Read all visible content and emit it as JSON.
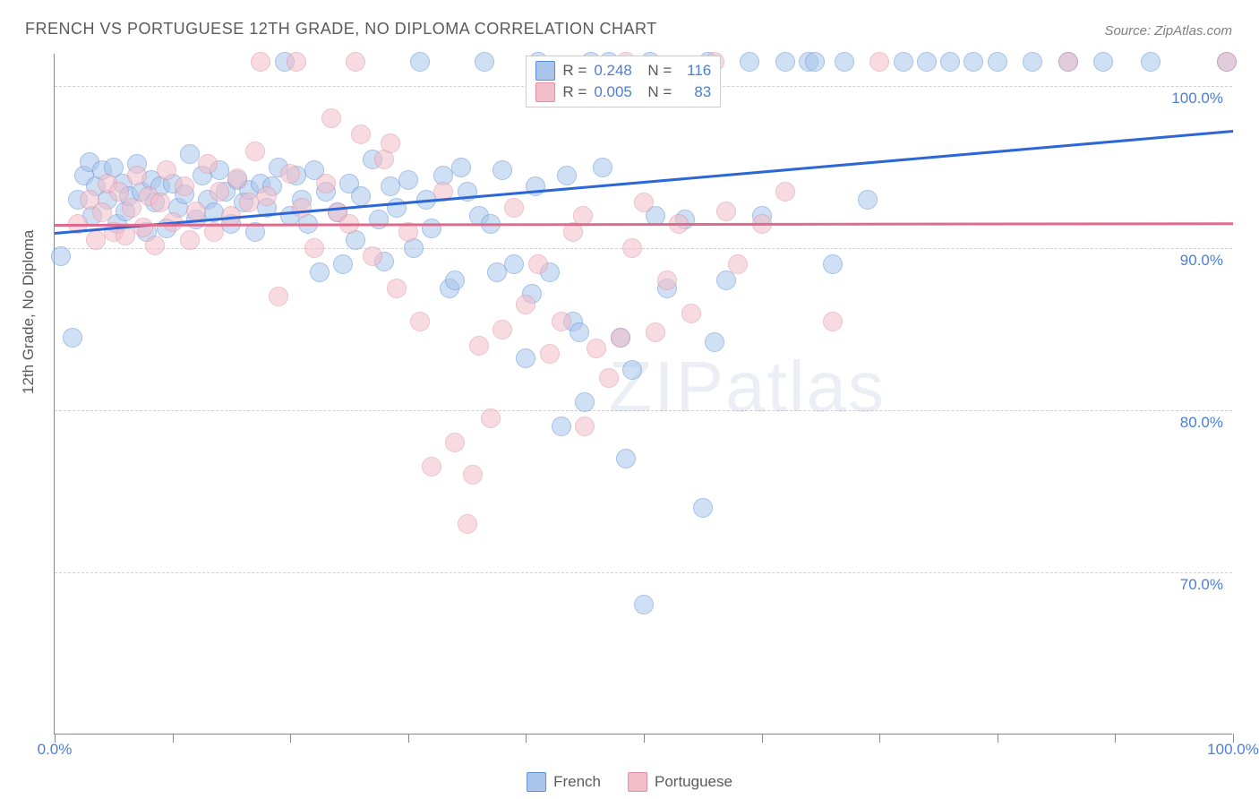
{
  "title": "FRENCH VS PORTUGUESE 12TH GRADE, NO DIPLOMA CORRELATION CHART",
  "source": "Source: ZipAtlas.com",
  "y_axis_label": "12th Grade, No Diploma",
  "watermark": "ZIPatlas",
  "chart": {
    "type": "scatter",
    "background_color": "#ffffff",
    "grid_color": "#d0d0d0",
    "axis_color": "#888888",
    "xlim": [
      0,
      100
    ],
    "ylim": [
      60,
      102
    ],
    "yticks": [
      70,
      80,
      90,
      100
    ],
    "ytick_labels": [
      "70.0%",
      "80.0%",
      "90.0%",
      "100.0%"
    ],
    "xticks": [
      0,
      10,
      20,
      30,
      40,
      50,
      60,
      70,
      80,
      90,
      100
    ],
    "xtick_labels": {
      "0": "0.0%",
      "100": "100.0%"
    },
    "marker_radius": 11,
    "marker_opacity": 0.55,
    "series": [
      {
        "name": "French",
        "fill": "#a9c5ec",
        "stroke": "#5e8fd4",
        "R": "0.248",
        "N": "116",
        "trend": {
          "x1": 0,
          "y1": 91.0,
          "x2": 100,
          "y2": 97.3,
          "color": "#2d66d6",
          "width": 2.5
        },
        "points": [
          [
            0.5,
            89.5
          ],
          [
            1.5,
            84.5
          ],
          [
            2,
            93
          ],
          [
            2.5,
            94.5
          ],
          [
            3,
            95.3
          ],
          [
            3.2,
            92
          ],
          [
            3.5,
            93.8
          ],
          [
            4,
            94.8
          ],
          [
            4.5,
            93
          ],
          [
            5,
            95
          ],
          [
            5.3,
            91.5
          ],
          [
            5.8,
            94
          ],
          [
            6,
            92.3
          ],
          [
            6.3,
            93.2
          ],
          [
            7,
            95.2
          ],
          [
            7.4,
            93.5
          ],
          [
            7.8,
            91
          ],
          [
            8.2,
            94.2
          ],
          [
            8.5,
            92.8
          ],
          [
            9,
            93.8
          ],
          [
            9.5,
            91.2
          ],
          [
            10,
            94
          ],
          [
            10.5,
            92.5
          ],
          [
            11,
            93.3
          ],
          [
            11.5,
            95.8
          ],
          [
            12,
            91.8
          ],
          [
            12.5,
            94.5
          ],
          [
            13,
            93
          ],
          [
            13.5,
            92.2
          ],
          [
            14,
            94.8
          ],
          [
            14.5,
            93.5
          ],
          [
            15,
            91.5
          ],
          [
            15.5,
            94.2
          ],
          [
            16,
            92.8
          ],
          [
            16.5,
            93.6
          ],
          [
            17,
            91
          ],
          [
            17.5,
            94
          ],
          [
            18,
            92.5
          ],
          [
            18.5,
            93.8
          ],
          [
            19,
            95
          ],
          [
            19.5,
            101.5
          ],
          [
            20,
            92
          ],
          [
            20.5,
            94.5
          ],
          [
            21,
            93
          ],
          [
            21.5,
            91.5
          ],
          [
            22,
            94.8
          ],
          [
            22.5,
            88.5
          ],
          [
            23,
            93.5
          ],
          [
            24,
            92.2
          ],
          [
            24.5,
            89
          ],
          [
            25,
            94
          ],
          [
            25.5,
            90.5
          ],
          [
            26,
            93.2
          ],
          [
            27,
            95.5
          ],
          [
            27.5,
            91.8
          ],
          [
            28,
            89.2
          ],
          [
            28.5,
            93.8
          ],
          [
            29,
            92.5
          ],
          [
            30,
            94.2
          ],
          [
            30.5,
            90
          ],
          [
            31,
            101.5
          ],
          [
            31.5,
            93
          ],
          [
            32,
            91.2
          ],
          [
            33,
            94.5
          ],
          [
            33.5,
            87.5
          ],
          [
            34,
            88
          ],
          [
            34.5,
            95
          ],
          [
            35,
            93.5
          ],
          [
            36,
            92
          ],
          [
            36.5,
            101.5
          ],
          [
            37,
            91.5
          ],
          [
            37.5,
            88.5
          ],
          [
            38,
            94.8
          ],
          [
            39,
            89
          ],
          [
            40,
            83.2
          ],
          [
            40.5,
            87.2
          ],
          [
            40.8,
            93.8
          ],
          [
            41,
            101.5
          ],
          [
            42,
            88.5
          ],
          [
            43,
            79
          ],
          [
            43.5,
            94.5
          ],
          [
            44,
            85.5
          ],
          [
            44.5,
            84.8
          ],
          [
            45,
            80.5
          ],
          [
            45.5,
            101.5
          ],
          [
            46.5,
            95
          ],
          [
            47,
            101.5
          ],
          [
            48,
            84.5
          ],
          [
            48.5,
            77
          ],
          [
            49,
            82.5
          ],
          [
            50,
            68
          ],
          [
            50.5,
            101.5
          ],
          [
            51,
            92
          ],
          [
            52,
            87.5
          ],
          [
            53.5,
            91.8
          ],
          [
            55,
            74
          ],
          [
            55.5,
            101.5
          ],
          [
            56,
            84.2
          ],
          [
            57,
            88
          ],
          [
            59,
            101.5
          ],
          [
            60,
            92
          ],
          [
            62,
            101.5
          ],
          [
            64,
            101.5
          ],
          [
            64.5,
            101.5
          ],
          [
            66,
            89
          ],
          [
            67,
            101.5
          ],
          [
            69,
            93
          ],
          [
            72,
            101.5
          ],
          [
            74,
            101.5
          ],
          [
            76,
            101.5
          ],
          [
            78,
            101.5
          ],
          [
            80,
            101.5
          ],
          [
            83,
            101.5
          ],
          [
            86,
            101.5
          ],
          [
            89,
            101.5
          ],
          [
            93,
            101.5
          ],
          [
            99.5,
            101.5
          ]
        ]
      },
      {
        "name": "Portuguese",
        "fill": "#f3bec9",
        "stroke": "#de8fa5",
        "R": "0.005",
        "N": "83",
        "trend": {
          "x1": 0,
          "y1": 91.5,
          "x2": 100,
          "y2": 91.6,
          "color": "#e06a8c",
          "width": 2.5
        },
        "points": [
          [
            2,
            91.5
          ],
          [
            3,
            93
          ],
          [
            3.5,
            90.5
          ],
          [
            4,
            92.2
          ],
          [
            4.5,
            94
          ],
          [
            5,
            91
          ],
          [
            5.5,
            93.5
          ],
          [
            6,
            90.8
          ],
          [
            6.5,
            92.5
          ],
          [
            7,
            94.5
          ],
          [
            7.5,
            91.3
          ],
          [
            8,
            93.2
          ],
          [
            8.5,
            90.2
          ],
          [
            9,
            92.8
          ],
          [
            9.5,
            94.8
          ],
          [
            10,
            91.6
          ],
          [
            11,
            93.8
          ],
          [
            11.5,
            90.5
          ],
          [
            12,
            92.3
          ],
          [
            13,
            95.2
          ],
          [
            13.5,
            91
          ],
          [
            14,
            93.5
          ],
          [
            15,
            92
          ],
          [
            15.5,
            94.3
          ],
          [
            16.5,
            92.8
          ],
          [
            17,
            96
          ],
          [
            17.5,
            101.5
          ],
          [
            18,
            93.2
          ],
          [
            19,
            87
          ],
          [
            20,
            94.6
          ],
          [
            20.5,
            101.5
          ],
          [
            21,
            92.5
          ],
          [
            22,
            90
          ],
          [
            23,
            94
          ],
          [
            23.5,
            98
          ],
          [
            24,
            92.2
          ],
          [
            25,
            91.5
          ],
          [
            25.5,
            101.5
          ],
          [
            26,
            97
          ],
          [
            27,
            89.5
          ],
          [
            28,
            95.5
          ],
          [
            28.5,
            96.5
          ],
          [
            29,
            87.5
          ],
          [
            30,
            91
          ],
          [
            31,
            85.5
          ],
          [
            32,
            76.5
          ],
          [
            33,
            93.5
          ],
          [
            34,
            78
          ],
          [
            35,
            73
          ],
          [
            35.5,
            76
          ],
          [
            36,
            84
          ],
          [
            37,
            79.5
          ],
          [
            38,
            85
          ],
          [
            39,
            92.5
          ],
          [
            40,
            86.5
          ],
          [
            41,
            89
          ],
          [
            42,
            83.5
          ],
          [
            43,
            85.5
          ],
          [
            44,
            91
          ],
          [
            44.8,
            92
          ],
          [
            45,
            79
          ],
          [
            46,
            83.8
          ],
          [
            47,
            82
          ],
          [
            48,
            84.5
          ],
          [
            48.5,
            101.5
          ],
          [
            49,
            90
          ],
          [
            50,
            92.8
          ],
          [
            51,
            84.8
          ],
          [
            52,
            88
          ],
          [
            53,
            91.5
          ],
          [
            54,
            86
          ],
          [
            56,
            101.5
          ],
          [
            57,
            92.3
          ],
          [
            58,
            89
          ],
          [
            60,
            91.5
          ],
          [
            62,
            93.5
          ],
          [
            66,
            85.5
          ],
          [
            70,
            101.5
          ],
          [
            86,
            101.5
          ],
          [
            99.5,
            101.5
          ]
        ]
      }
    ]
  },
  "legend_bottom": [
    {
      "label": "French",
      "fill": "#a9c5ec",
      "stroke": "#5e8fd4"
    },
    {
      "label": "Portuguese",
      "fill": "#f3bec9",
      "stroke": "#de8fa5"
    }
  ]
}
